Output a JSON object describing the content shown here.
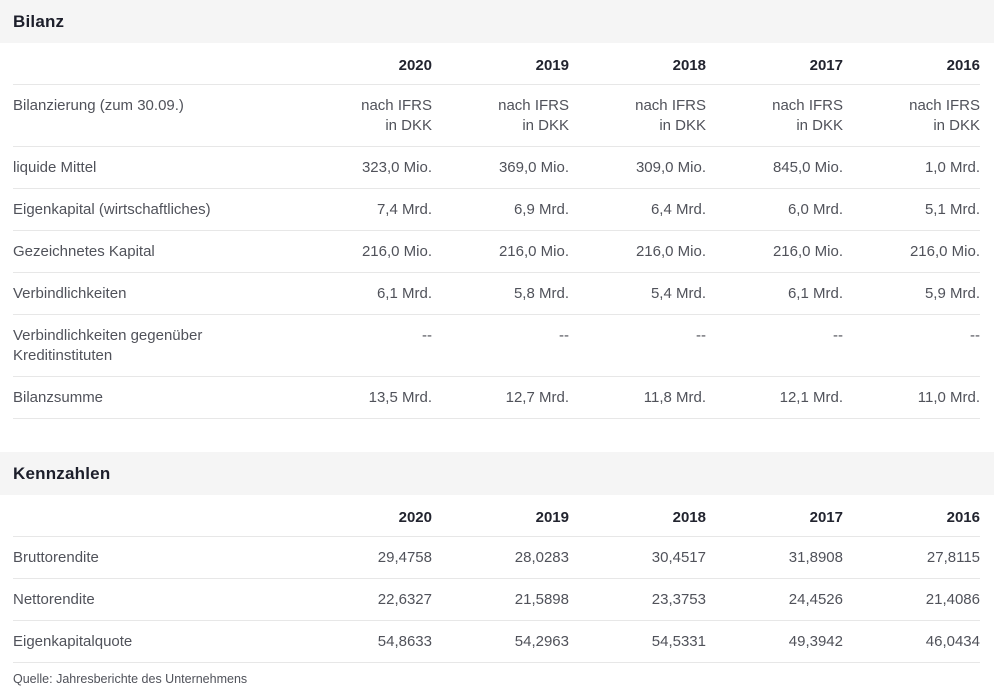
{
  "colors": {
    "section_bar_bg": "#f5f5f5",
    "heading_text": "#1d1f2b",
    "body_text": "#50525a",
    "row_border": "#e7e7e7",
    "page_bg": "#ffffff"
  },
  "sections": [
    {
      "title": "Bilanz",
      "years": [
        "2020",
        "2019",
        "2018",
        "2017",
        "2016"
      ],
      "rows": [
        {
          "label": "Bilanzierung (zum 30.09.)",
          "values": [
            [
              "nach IFRS",
              "in DKK"
            ],
            [
              "nach IFRS",
              "in DKK"
            ],
            [
              "nach IFRS",
              "in DKK"
            ],
            [
              "nach IFRS",
              "in DKK"
            ],
            [
              "nach IFRS",
              "in DKK"
            ]
          ]
        },
        {
          "label": "liquide Mittel",
          "values": [
            "323,0 Mio.",
            "369,0 Mio.",
            "309,0 Mio.",
            "845,0 Mio.",
            "1,0 Mrd."
          ]
        },
        {
          "label": "Eigenkapital (wirtschaftliches)",
          "values": [
            "7,4 Mrd.",
            "6,9 Mrd.",
            "6,4 Mrd.",
            "6,0 Mrd.",
            "5,1 Mrd."
          ]
        },
        {
          "label": "Gezeichnetes Kapital",
          "values": [
            "216,0 Mio.",
            "216,0 Mio.",
            "216,0 Mio.",
            "216,0 Mio.",
            "216,0 Mio."
          ]
        },
        {
          "label": "Verbindlichkeiten",
          "values": [
            "6,1 Mrd.",
            "5,8 Mrd.",
            "5,4 Mrd.",
            "6,1 Mrd.",
            "5,9 Mrd."
          ]
        },
        {
          "label": "Verbindlichkeiten gegenüber Kreditinstituten",
          "values": [
            "--",
            "--",
            "--",
            "--",
            "--"
          ]
        },
        {
          "label": "Bilanzsumme",
          "values": [
            "13,5 Mrd.",
            "12,7 Mrd.",
            "11,8 Mrd.",
            "12,1 Mrd.",
            "11,0 Mrd."
          ]
        }
      ]
    },
    {
      "title": "Kennzahlen",
      "years": [
        "2020",
        "2019",
        "2018",
        "2017",
        "2016"
      ],
      "rows": [
        {
          "label": "Bruttorendite",
          "values": [
            "29,4758",
            "28,0283",
            "30,4517",
            "31,8908",
            "27,8115"
          ]
        },
        {
          "label": "Nettorendite",
          "values": [
            "22,6327",
            "21,5898",
            "23,3753",
            "24,4526",
            "21,4086"
          ]
        },
        {
          "label": "Eigenkapitalquote",
          "values": [
            "54,8633",
            "54,2963",
            "54,5331",
            "49,3942",
            "46,0434"
          ]
        }
      ]
    }
  ],
  "footer": {
    "source": "Quelle: Jahresberichte des Unternehmens"
  }
}
